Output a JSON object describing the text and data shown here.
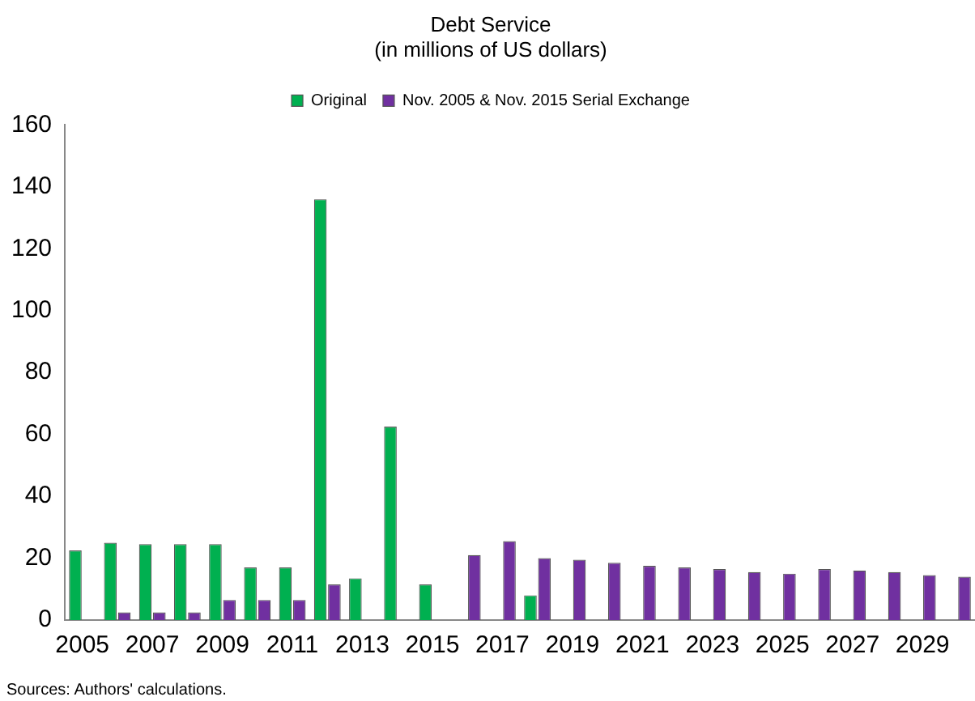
{
  "chart_data": {
    "type": "bar",
    "title": "Debt Service",
    "subtitle": "(in millions of US dollars)",
    "categories": [
      "2005",
      null,
      "2007",
      null,
      "2009",
      null,
      "2011",
      null,
      "2013",
      null,
      "2015",
      null,
      "2017",
      null,
      "2019",
      null,
      "2021",
      null,
      "2023",
      null,
      "2025",
      null,
      "2027",
      null,
      "2029",
      null
    ],
    "series": [
      {
        "name": "Original",
        "color": "#00b050",
        "values": [
          22.5,
          25,
          24.5,
          24.5,
          24.5,
          17,
          17,
          136,
          13.5,
          62.5,
          11.5,
          null,
          null,
          8,
          null,
          null,
          null,
          null,
          null,
          null,
          null,
          null,
          null,
          null,
          null,
          null
        ]
      },
      {
        "name": "Nov. 2005 & Nov. 2015 Serial Exchange",
        "color": "#7030a0",
        "values": [
          null,
          2.5,
          2.5,
          2.5,
          6.5,
          6.5,
          6.5,
          11.5,
          null,
          null,
          null,
          21,
          25.5,
          20,
          19.5,
          18.5,
          17.5,
          17,
          16.5,
          15.5,
          15,
          16.5,
          16,
          15.5,
          14.5,
          14
        ]
      }
    ],
    "ylim": [
      0,
      160
    ],
    "yticks": [
      0,
      20,
      40,
      60,
      80,
      100,
      120,
      140,
      160
    ],
    "grid": false,
    "legend": "top",
    "annotations": [
      "Sources: Authors' calculations."
    ]
  }
}
